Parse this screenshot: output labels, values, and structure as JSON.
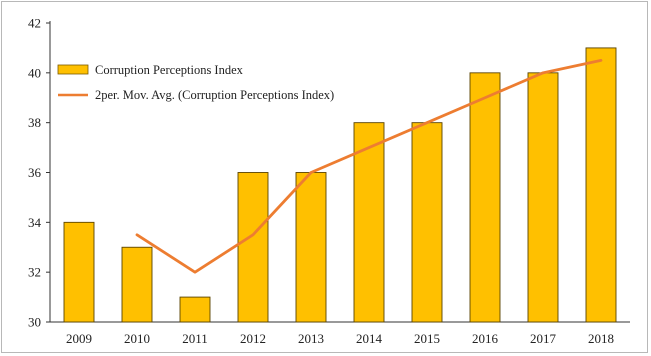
{
  "chart_data": {
    "type": "bar",
    "categories": [
      "2009",
      "2010",
      "2011",
      "2012",
      "2013",
      "2014",
      "2015",
      "2016",
      "2017",
      "2018"
    ],
    "series": [
      {
        "name": "Corruption Perceptions Index",
        "type": "bar",
        "color": "#FFC000",
        "values": [
          34,
          33,
          31,
          36,
          36,
          38,
          38,
          40,
          40,
          41
        ]
      },
      {
        "name": "2per. Mov. Avg. (Corruption Perceptions Index)",
        "type": "line",
        "color": "#ED7D31",
        "values": [
          null,
          33.5,
          32,
          33.5,
          36,
          37,
          38,
          39,
          40,
          40.5
        ]
      }
    ],
    "yticks": [
      "30",
      "32",
      "34",
      "36",
      "38",
      "40",
      "42"
    ],
    "ylim": [
      30,
      42
    ],
    "grid": false,
    "legend_position": "top-left"
  }
}
